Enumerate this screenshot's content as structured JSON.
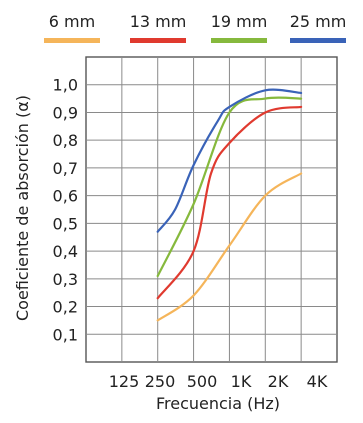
{
  "chart_data": {
    "type": "line",
    "title": "",
    "xlabel": "Frecuencia (Hz)",
    "ylabel": "Coeficiente de absorción (α)",
    "x_ticks": [
      "125",
      "250",
      "500",
      "1K",
      "2K",
      "4K"
    ],
    "y_ticks": [
      "0,1",
      "0,2",
      "0,3",
      "0,4",
      "0,5",
      "0,6",
      "0,7",
      "0,8",
      "0,9",
      "1,0"
    ],
    "ylim": [
      0,
      1.1
    ],
    "grid": true,
    "legend_position": "top",
    "series": [
      {
        "name": "6 mm",
        "color": "#f5b55a",
        "points": [
          [
            250,
            0.15
          ],
          [
            500,
            0.24
          ],
          [
            1000,
            0.42
          ],
          [
            2000,
            0.6
          ],
          [
            4000,
            0.68
          ]
        ]
      },
      {
        "name": "13 mm",
        "color": "#e03a2f",
        "points": [
          [
            250,
            0.23
          ],
          [
            500,
            0.4
          ],
          [
            700,
            0.68
          ],
          [
            1000,
            0.79
          ],
          [
            2000,
            0.9
          ],
          [
            4000,
            0.92
          ]
        ]
      },
      {
        "name": "19 mm",
        "color": "#86b93d",
        "points": [
          [
            250,
            0.31
          ],
          [
            500,
            0.57
          ],
          [
            1000,
            0.9
          ],
          [
            2000,
            0.95
          ],
          [
            4000,
            0.95
          ]
        ]
      },
      {
        "name": "25 mm",
        "color": "#3a63b8",
        "points": [
          [
            250,
            0.47
          ],
          [
            350,
            0.55
          ],
          [
            500,
            0.71
          ],
          [
            800,
            0.87
          ],
          [
            1000,
            0.92
          ],
          [
            2000,
            0.98
          ],
          [
            4000,
            0.97
          ]
        ]
      }
    ]
  }
}
